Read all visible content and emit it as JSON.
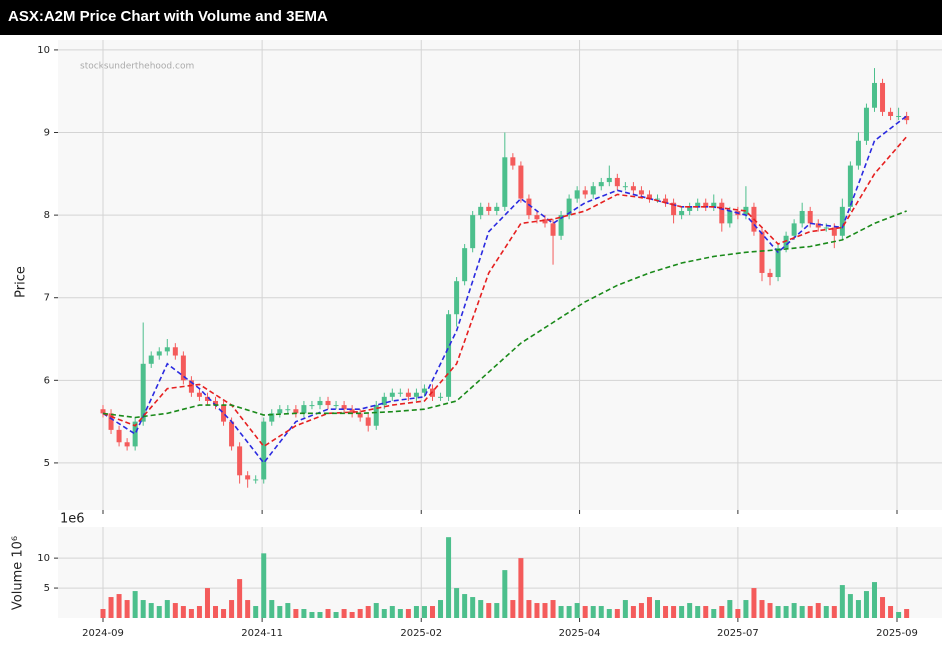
{
  "chart_data": [
    {
      "type": "candlestick",
      "title": "ASX:A2M Price Chart with Volume and 3EMA",
      "watermark": "stocksunderthehood.com",
      "ylabel": "Price",
      "open": [
        5.65,
        5.6,
        5.4,
        5.25,
        5.2,
        5.5,
        6.2,
        6.3,
        6.35,
        6.4,
        6.3,
        6.0,
        5.85,
        5.8,
        5.75,
        5.7,
        5.5,
        5.2,
        4.85,
        4.8,
        4.8,
        5.5,
        5.6,
        5.65,
        5.65,
        5.6,
        5.7,
        5.7,
        5.75,
        5.7,
        5.7,
        5.65,
        5.6,
        5.55,
        5.45,
        5.7,
        5.8,
        5.85,
        5.85,
        5.8,
        5.85,
        5.9,
        5.8,
        5.8,
        6.8,
        7.2,
        7.6,
        8.0,
        8.1,
        8.05,
        8.1,
        8.7,
        8.6,
        8.2,
        8.0,
        7.95,
        7.9,
        7.75,
        8.0,
        8.2,
        8.3,
        8.25,
        8.35,
        8.4,
        8.45,
        8.35,
        8.35,
        8.3,
        8.25,
        8.2,
        8.2,
        8.15,
        8.0,
        8.05,
        8.1,
        8.15,
        8.1,
        8.15,
        7.9,
        8.05,
        8.0,
        8.1,
        7.8,
        7.3,
        7.25,
        7.6,
        7.75,
        7.9,
        8.05,
        7.9,
        7.85,
        7.85,
        7.75,
        8.1,
        8.6,
        8.9,
        9.3,
        9.6,
        9.25,
        9.2,
        9.2
      ],
      "high": [
        5.7,
        5.65,
        5.45,
        5.3,
        5.55,
        6.7,
        6.35,
        6.4,
        6.5,
        6.45,
        6.35,
        6.05,
        5.9,
        5.85,
        5.8,
        5.75,
        5.55,
        5.25,
        4.9,
        4.85,
        5.55,
        5.65,
        5.7,
        5.7,
        5.7,
        5.75,
        5.75,
        5.8,
        5.8,
        5.75,
        5.75,
        5.7,
        5.65,
        5.6,
        5.75,
        5.85,
        5.9,
        5.9,
        5.9,
        5.9,
        5.95,
        5.95,
        5.85,
        6.85,
        7.25,
        7.65,
        8.05,
        8.15,
        8.15,
        8.15,
        9.0,
        8.75,
        8.65,
        8.25,
        8.05,
        8.0,
        7.95,
        8.05,
        8.25,
        8.35,
        8.35,
        8.4,
        8.45,
        8.6,
        8.5,
        8.4,
        8.4,
        8.35,
        8.3,
        8.25,
        8.25,
        8.2,
        8.1,
        8.15,
        8.2,
        8.2,
        8.25,
        8.2,
        8.1,
        8.1,
        8.35,
        8.15,
        7.85,
        7.35,
        7.65,
        7.8,
        7.95,
        8.15,
        8.1,
        7.95,
        7.9,
        7.9,
        8.2,
        8.65,
        9.0,
        9.35,
        9.78,
        9.65,
        9.3,
        9.3,
        9.25
      ],
      "low": [
        5.55,
        5.35,
        5.2,
        5.15,
        5.15,
        5.45,
        6.15,
        6.25,
        6.3,
        6.25,
        5.95,
        5.8,
        5.75,
        5.7,
        5.65,
        5.45,
        5.15,
        4.75,
        4.7,
        4.75,
        4.75,
        5.45,
        5.55,
        5.6,
        5.55,
        5.55,
        5.65,
        5.65,
        5.65,
        5.65,
        5.6,
        5.55,
        5.5,
        5.38,
        5.4,
        5.65,
        5.75,
        5.8,
        5.75,
        5.75,
        5.8,
        5.75,
        5.75,
        5.75,
        6.65,
        7.15,
        7.55,
        7.95,
        8.0,
        8.0,
        8.05,
        8.55,
        8.15,
        7.95,
        7.9,
        7.85,
        7.4,
        7.7,
        7.95,
        8.15,
        8.2,
        8.2,
        8.3,
        8.35,
        8.3,
        8.3,
        8.25,
        8.2,
        8.15,
        8.15,
        8.1,
        7.9,
        7.95,
        8.0,
        8.05,
        8.05,
        8.05,
        7.8,
        7.85,
        7.95,
        7.95,
        7.75,
        7.2,
        7.15,
        7.2,
        7.55,
        7.7,
        7.85,
        7.85,
        7.8,
        7.8,
        7.6,
        7.7,
        8.05,
        8.55,
        8.85,
        9.25,
        9.2,
        9.15,
        9.15,
        9.1
      ],
      "close": [
        5.6,
        5.4,
        5.25,
        5.2,
        5.5,
        6.2,
        6.3,
        6.35,
        6.4,
        6.3,
        6.0,
        5.85,
        5.8,
        5.75,
        5.7,
        5.5,
        5.2,
        4.85,
        4.8,
        4.8,
        5.5,
        5.6,
        5.65,
        5.65,
        5.6,
        5.7,
        5.7,
        5.75,
        5.7,
        5.7,
        5.65,
        5.6,
        5.55,
        5.45,
        5.7,
        5.8,
        5.85,
        5.85,
        5.8,
        5.85,
        5.9,
        5.8,
        5.8,
        6.8,
        7.2,
        7.6,
        8.0,
        8.1,
        8.05,
        8.1,
        8.7,
        8.6,
        8.2,
        8.0,
        7.95,
        7.9,
        7.75,
        8.0,
        8.2,
        8.3,
        8.25,
        8.35,
        8.4,
        8.45,
        8.35,
        8.35,
        8.3,
        8.25,
        8.2,
        8.2,
        8.15,
        8.0,
        8.05,
        8.1,
        8.15,
        8.1,
        8.15,
        7.9,
        8.05,
        8.0,
        8.1,
        7.8,
        7.3,
        7.25,
        7.6,
        7.75,
        7.9,
        8.05,
        7.9,
        7.85,
        7.85,
        7.75,
        8.1,
        8.6,
        8.9,
        9.3,
        9.6,
        9.25,
        9.2,
        9.2,
        9.15
      ],
      "up_color": "#4cbf8c",
      "down_color": "#f45b5b",
      "series": [
        {
          "color": "#2a2ae0",
          "x": [
            0,
            4,
            8,
            12,
            16,
            20,
            24,
            28,
            32,
            36,
            40,
            44,
            48,
            52,
            56,
            60,
            64,
            68,
            72,
            76,
            80,
            84,
            88,
            92,
            96,
            100
          ],
          "values": [
            5.6,
            5.35,
            6.2,
            5.9,
            5.5,
            5.0,
            5.5,
            5.65,
            5.65,
            5.75,
            5.8,
            6.6,
            7.8,
            8.2,
            7.9,
            8.15,
            8.3,
            8.2,
            8.1,
            8.1,
            8.0,
            7.55,
            7.9,
            7.85,
            8.9,
            9.2
          ]
        },
        {
          "color": "#e62020",
          "x": [
            0,
            4,
            8,
            12,
            16,
            20,
            24,
            28,
            32,
            36,
            40,
            44,
            48,
            52,
            56,
            60,
            64,
            68,
            72,
            76,
            80,
            84,
            88,
            92,
            96,
            100
          ],
          "values": [
            5.6,
            5.45,
            5.9,
            5.95,
            5.7,
            5.2,
            5.45,
            5.6,
            5.62,
            5.7,
            5.75,
            6.2,
            7.3,
            7.9,
            7.95,
            8.05,
            8.25,
            8.2,
            8.1,
            8.1,
            8.05,
            7.65,
            7.8,
            7.85,
            8.5,
            8.95
          ]
        },
        {
          "color": "#1a8a1a",
          "x": [
            0,
            4,
            8,
            12,
            16,
            20,
            24,
            28,
            32,
            36,
            40,
            44,
            48,
            52,
            56,
            60,
            64,
            68,
            72,
            76,
            80,
            84,
            88,
            92,
            96,
            100
          ],
          "values": [
            5.6,
            5.55,
            5.6,
            5.7,
            5.7,
            5.58,
            5.6,
            5.6,
            5.6,
            5.62,
            5.65,
            5.75,
            6.1,
            6.45,
            6.7,
            6.95,
            7.15,
            7.3,
            7.42,
            7.5,
            7.55,
            7.58,
            7.62,
            7.7,
            7.9,
            8.05
          ]
        }
      ],
      "xlim": [
        -5.6,
        104.4
      ],
      "ylim": [
        4.43,
        10.12
      ],
      "yticks": [
        5,
        6,
        7,
        8,
        9,
        10
      ],
      "grid": true
    },
    {
      "type": "bar",
      "ylabel": "Volume 10⁶",
      "offset_label": "1e6",
      "values": [
        1.5,
        3.5,
        4,
        3,
        4.5,
        3,
        2.5,
        2,
        3,
        2.5,
        2,
        1.5,
        2,
        5,
        2,
        1.5,
        3,
        6.5,
        3,
        2,
        10.8,
        3,
        2,
        2.5,
        1.5,
        1.5,
        1,
        1,
        1.5,
        1,
        1.5,
        1,
        1.5,
        2,
        2.5,
        1.5,
        2,
        1.5,
        1.5,
        2,
        2,
        2,
        3,
        13.5,
        5,
        4,
        3.5,
        3,
        2.5,
        2.5,
        8,
        3,
        10,
        3,
        2.5,
        2.5,
        3,
        2,
        2,
        2.5,
        2,
        2,
        2,
        1.5,
        1.5,
        3,
        2,
        2.5,
        3.5,
        3,
        2,
        2,
        2,
        2.5,
        2,
        2,
        1.5,
        2,
        3,
        1.5,
        3,
        5,
        3,
        2.5,
        2,
        2,
        2.5,
        2,
        2,
        2.5,
        2,
        2,
        5.5,
        4,
        3,
        4.5,
        6,
        3.5,
        2,
        1,
        1.5
      ],
      "xlim": [
        -5.6,
        104.4
      ],
      "ylim": [
        0,
        15.2
      ],
      "yticks": [
        5,
        10
      ],
      "xticks": [
        {
          "value": 0,
          "label": "2024-09"
        },
        {
          "value": 19.8,
          "label": "2024-11"
        },
        {
          "value": 39.6,
          "label": "2025-02"
        },
        {
          "value": 59.3,
          "label": "2025-04"
        },
        {
          "value": 79.0,
          "label": "2025-07"
        },
        {
          "value": 98.8,
          "label": "2025-09"
        }
      ],
      "grid": true
    }
  ]
}
